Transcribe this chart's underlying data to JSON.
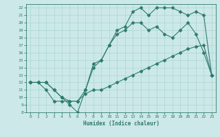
{
  "xlabel": "Humidex (Indice chaleur)",
  "bg_color": "#cce8e8",
  "grid_color": "#b0d8d8",
  "line_color": "#2e7b6e",
  "xlim": [
    -0.5,
    23.5
  ],
  "ylim": [
    8,
    22.5
  ],
  "xticks": [
    0,
    1,
    2,
    3,
    4,
    5,
    6,
    7,
    8,
    9,
    10,
    11,
    12,
    13,
    14,
    15,
    16,
    17,
    18,
    19,
    20,
    21,
    22,
    23
  ],
  "yticks": [
    8,
    9,
    10,
    11,
    12,
    13,
    14,
    15,
    16,
    17,
    18,
    19,
    20,
    21,
    22
  ],
  "line1_x": [
    0,
    1,
    2,
    3,
    4,
    5,
    6,
    7,
    8,
    9,
    10,
    11,
    12,
    13,
    14,
    15,
    16,
    17,
    18,
    19,
    20,
    21,
    22,
    23
  ],
  "line1_y": [
    12,
    12,
    11,
    9.5,
    9.5,
    9.5,
    9.5,
    10.5,
    11,
    11,
    11.5,
    12,
    12.5,
    13,
    13.5,
    14,
    14.5,
    15,
    15.5,
    16,
    16.5,
    16.8,
    17,
    13
  ],
  "line2_x": [
    0,
    1,
    2,
    3,
    4,
    5,
    6,
    7,
    8,
    9,
    10,
    11,
    12,
    13,
    14,
    15,
    16,
    17,
    18,
    19,
    20,
    21,
    22,
    23
  ],
  "line2_y": [
    12,
    12,
    12,
    11,
    10,
    9.5,
    9.5,
    11,
    14,
    15,
    17,
    18.5,
    19,
    20,
    20,
    19,
    19.5,
    18.5,
    18,
    19,
    20,
    18.5,
    16,
    13
  ],
  "line3_x": [
    0,
    1,
    2,
    3,
    4,
    5,
    6,
    7,
    8,
    9,
    10,
    11,
    12,
    13,
    14,
    15,
    16,
    17,
    18,
    19,
    20,
    21,
    22,
    23
  ],
  "line3_y": [
    12,
    12,
    12,
    11,
    10,
    9,
    8,
    11,
    14.5,
    15,
    17,
    19,
    19.5,
    21.5,
    22,
    21,
    22,
    22,
    22,
    21.5,
    21,
    21.5,
    21,
    13
  ]
}
